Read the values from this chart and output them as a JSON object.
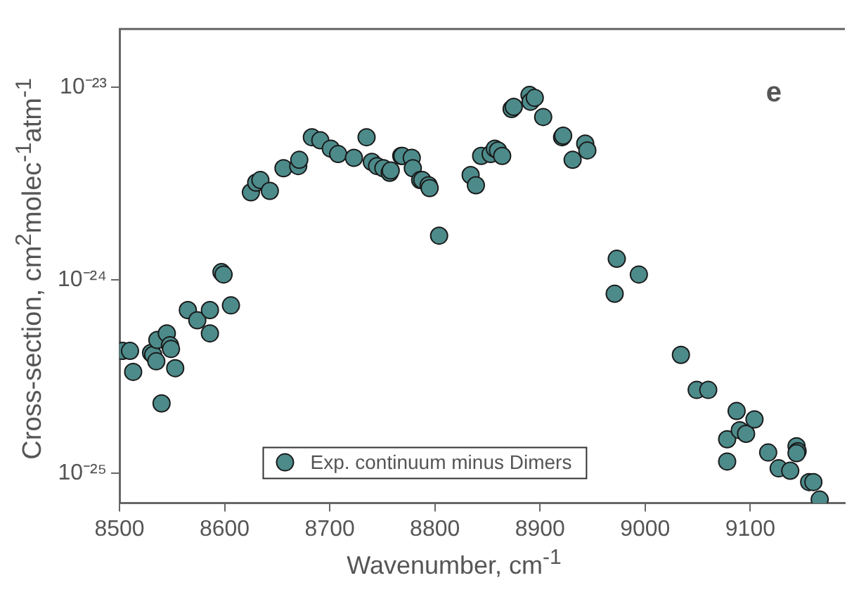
{
  "chart_data": {
    "type": "scatter",
    "xlabel": "Wavenumber, cm$^{-1}$",
    "ylabel": "Cross-section, cm$^{2}$molec$^{-1}$atm$^{-1}$",
    "annotations": [
      "e"
    ],
    "log": "y",
    "xlim": [
      8500,
      9190
    ],
    "xticks": [
      8500,
      8600,
      8700,
      8800,
      8900,
      9000,
      9100
    ],
    "ylim": [
      7e-26,
      2e-23
    ],
    "yticks": [
      {
        "value": 1e-25,
        "label": "10⁻²⁵"
      },
      {
        "value": 1e-24,
        "label": "10⁻²⁴"
      },
      {
        "value": 1e-23,
        "label": "10⁻²³"
      }
    ],
    "grid": false,
    "legend": "bottom",
    "marker": "circle",
    "series": [
      {
        "name": "Exp. continuum minus Dimers",
        "color": "#4d8b8b",
        "x": [
          8503,
          8510,
          8513,
          8530,
          8532,
          8535,
          8536,
          8545,
          8548,
          8549,
          8540,
          8553,
          8565,
          8574,
          8586,
          8586,
          8606,
          8597,
          8599,
          8625,
          8630,
          8634,
          8643,
          8656,
          8670,
          8671,
          8683,
          8691,
          8701,
          8708,
          8723,
          8735,
          8740,
          8745,
          8751,
          8757,
          8758,
          8768,
          8769,
          8778,
          8779,
          8786,
          8788,
          8794,
          8795,
          8804,
          8834,
          8839,
          8844,
          8853,
          8857,
          8860,
          8864,
          8873,
          8875,
          8890,
          8891,
          8895,
          8903,
          8921,
          8922,
          8931,
          8943,
          8945,
          8973,
          8994,
          8971,
          9034,
          9049,
          9060,
          9087,
          9078,
          9090,
          9096,
          9104,
          9078,
          9117,
          9127,
          9138,
          9144,
          9145,
          9144,
          9156,
          9160,
          9166
        ],
        "values": [
          4.3e-25,
          4.3e-25,
          3.35e-25,
          4.2e-25,
          4.1e-25,
          3.8e-25,
          4.9e-25,
          5.3e-25,
          4.6e-25,
          4.4e-25,
          2.3e-25,
          3.5e-25,
          7e-25,
          6.2e-25,
          7e-25,
          5.3e-25,
          7.4e-25,
          1.1e-24,
          1.07e-24,
          2.85e-24,
          3.2e-24,
          3.3e-24,
          2.9e-24,
          3.8e-24,
          3.9e-24,
          4.2e-24,
          5.5e-24,
          5.3e-24,
          4.8e-24,
          4.5e-24,
          4.3e-24,
          5.5e-24,
          4.1e-24,
          3.9e-24,
          3.8e-24,
          3.6e-24,
          3.7e-24,
          4.4e-24,
          4.4e-24,
          4.3e-24,
          3.8e-24,
          3.3e-24,
          3.3e-24,
          3.1e-24,
          3e-24,
          1.7e-24,
          3.5e-24,
          3.1e-24,
          4.4e-24,
          4.5e-24,
          4.8e-24,
          4.7e-24,
          4.4e-24,
          7.7e-24,
          7.9e-24,
          9.1e-24,
          8.4e-24,
          8.8e-24,
          7e-24,
          5.5e-24,
          5.6e-24,
          4.2e-24,
          5.1e-24,
          4.7e-24,
          1.29e-24,
          1.07e-24,
          8.5e-25,
          4.1e-25,
          2.7e-25,
          2.7e-25,
          2.1e-25,
          1.5e-25,
          1.67e-25,
          1.6e-25,
          1.9e-25,
          1.15e-25,
          1.28e-25,
          1.06e-25,
          1.03e-25,
          1.38e-25,
          1.3e-25,
          1.27e-25,
          9e-26,
          9e-26,
          7.3e-26
        ]
      }
    ]
  }
}
